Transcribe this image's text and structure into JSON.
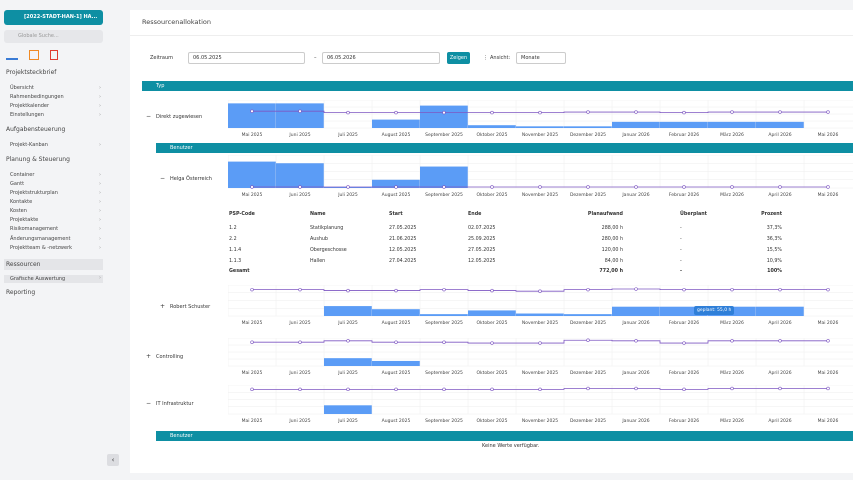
{
  "sidebar": {
    "project_button": "[2022-STADT-HAN-1] HA...",
    "search_placeholder": "Globale Suche...",
    "sections": [
      {
        "title": "Projektsteckbrief",
        "items": [
          "Übersicht",
          "Rahmenbedingungen",
          "Projektkalender",
          "Einstellungen"
        ]
      },
      {
        "title": "Aufgabensteuerung",
        "items": [
          "Projekt-Kanban"
        ]
      },
      {
        "title": "Planung & Steuerung",
        "items": [
          "Container",
          "Gantt",
          "Projektstrukturplan",
          "Kontakte",
          "Kosten",
          "Projektakte",
          "Risikomanagement",
          "Änderungsmanagement",
          "Projektteam & -netzwerk"
        ]
      },
      {
        "title": "Ressourcen",
        "items": [
          "Grafische Auswertung"
        ]
      },
      {
        "title": "Reporting",
        "items": []
      }
    ]
  },
  "main": {
    "title": "Ressourcenallokation",
    "filter": {
      "label": "Zeitraum",
      "from": "06.05.2025",
      "separator": "–",
      "to": "06.05.2026",
      "button": "Zeigen",
      "view_label": "Ansicht:",
      "view_value": "Monate"
    },
    "type_header": "Typ",
    "user_header": "Benutzer",
    "empty_text": "Keine Werte verfügbar.",
    "months": [
      "Mai 2025",
      "Juni 2025",
      "Juli 2025",
      "August 2025",
      "September 2025",
      "Oktober 2025",
      "November 2025",
      "Dezember 2025",
      "Januar 2026",
      "Februar 2026",
      "März 2026",
      "April 2026",
      "Mai 2026"
    ],
    "rows": [
      {
        "toggle": "−",
        "label": "Direkt zugewiesen",
        "bars": [
          88,
          88,
          0,
          30,
          80,
          10,
          6,
          6,
          22,
          22,
          22,
          22,
          0
        ],
        "line": [
          60,
          60,
          55,
          55,
          55,
          55,
          55,
          57,
          57,
          55,
          57,
          57,
          57
        ]
      },
      {
        "toggle": "−",
        "label": "Helga Österreich",
        "bars": [
          80,
          75,
          3,
          25,
          65,
          0,
          0,
          0,
          0,
          0,
          0,
          0,
          0
        ],
        "line": [
          3,
          3,
          3,
          3,
          3,
          3,
          3,
          3,
          3,
          3,
          3,
          3,
          3
        ]
      },
      {
        "toggle": "+",
        "label": "Robert Schuster",
        "bars": [
          0,
          0,
          32,
          22,
          6,
          18,
          8,
          6,
          30,
          30,
          30,
          30,
          0
        ],
        "line": [
          85,
          85,
          82,
          82,
          85,
          82,
          80,
          85,
          87,
          85,
          85,
          85,
          85
        ]
      },
      {
        "toggle": "+",
        "label": "Controlling",
        "bars": [
          0,
          0,
          28,
          18,
          0,
          0,
          0,
          0,
          0,
          0,
          0,
          0,
          0
        ],
        "line": [
          85,
          85,
          90,
          85,
          85,
          82,
          82,
          92,
          90,
          82,
          90,
          90,
          90
        ]
      },
      {
        "toggle": "−",
        "label": "IT Infrastruktur",
        "bars": [
          0,
          0,
          30,
          0,
          0,
          0,
          0,
          0,
          0,
          0,
          0,
          0,
          0
        ],
        "line": [
          85,
          85,
          85,
          85,
          85,
          85,
          85,
          88,
          88,
          85,
          88,
          88,
          88
        ]
      }
    ],
    "tooltip": "geplant: 55,0 h",
    "table": {
      "headers": [
        "PSP-Code",
        "Name",
        "Start",
        "Ende",
        "Planaufwand",
        "Überplant",
        "Prozent"
      ],
      "rows": [
        [
          "1.2",
          "Statikplanung",
          "27.05.2025",
          "02.07.2025",
          "288,00 h",
          "-",
          "37,3%"
        ],
        [
          "2.2",
          "Aushub",
          "21.06.2025",
          "25.09.2025",
          "280,00 h",
          "-",
          "36,3%"
        ],
        [
          "1.1.4",
          "Obergeschosse",
          "12.05.2025",
          "27.05.2025",
          "120,00 h",
          "-",
          "15,5%"
        ],
        [
          "1.1.3",
          "Hallen",
          "27.04.2025",
          "12.05.2025",
          "84,00 h",
          "-",
          "10,9%"
        ]
      ],
      "total": {
        "label": "Gesamt",
        "planaufwand": "772,00 h",
        "ueberplant": "-",
        "prozent": "100%"
      }
    }
  }
}
